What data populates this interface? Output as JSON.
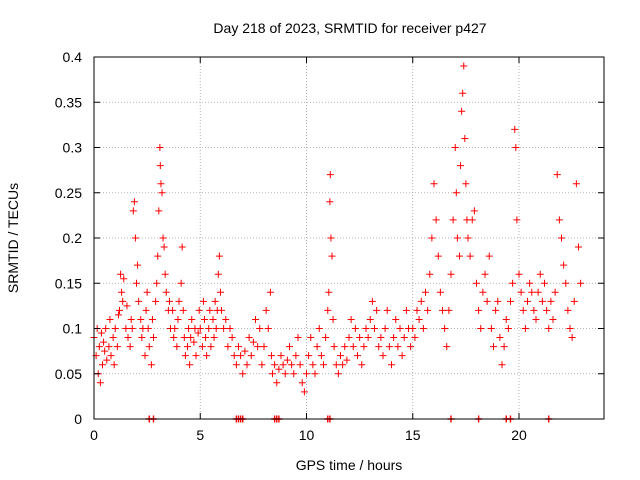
{
  "chart_data": {
    "type": "scatter",
    "title": "Day 218 of 2023, SRMTID for receiver p427",
    "xlabel": "GPS time / hours",
    "ylabel": "SRMTID / TECUs",
    "xlim": [
      0,
      24
    ],
    "ylim": [
      0,
      0.4
    ],
    "grid": true,
    "x_ticks": [
      0,
      5,
      10,
      15,
      20
    ],
    "x_tick_labels": [
      "0",
      "5",
      "10",
      "15",
      "20"
    ],
    "y_ticks": [
      0,
      0.05,
      0.1,
      0.15,
      0.2,
      0.25,
      0.3,
      0.35,
      0.4
    ],
    "y_tick_labels": [
      "0",
      "0.05",
      "0.1",
      "0.15",
      "0.2",
      "0.25",
      "0.3",
      "0.35",
      "0.4"
    ],
    "marker": "+",
    "series": [
      {
        "name": "SRMTID",
        "color": "#ff0000",
        "points": [
          [
            0.0,
            0.09
          ],
          [
            0.1,
            0.07
          ],
          [
            0.15,
            0.1
          ],
          [
            0.2,
            0.05
          ],
          [
            0.25,
            0.08
          ],
          [
            0.3,
            0.04
          ],
          [
            0.35,
            0.095
          ],
          [
            0.4,
            0.06
          ],
          [
            0.45,
            0.085
          ],
          [
            0.5,
            0.075
          ],
          [
            0.55,
            0.1
          ],
          [
            0.6,
            0.065
          ],
          [
            0.7,
            0.08
          ],
          [
            0.75,
            0.11
          ],
          [
            0.8,
            0.07
          ],
          [
            0.9,
            0.09
          ],
          [
            0.95,
            0.06
          ],
          [
            1.0,
            0.1
          ],
          [
            1.1,
            0.08
          ],
          [
            1.15,
            0.115
          ],
          [
            1.2,
            0.12
          ],
          [
            1.25,
            0.16
          ],
          [
            1.3,
            0.14
          ],
          [
            1.35,
            0.13
          ],
          [
            1.4,
            0.155
          ],
          [
            1.5,
            0.1
          ],
          [
            1.55,
            0.125
          ],
          [
            1.6,
            0.09
          ],
          [
            1.7,
            0.08
          ],
          [
            1.75,
            0.11
          ],
          [
            1.8,
            0.1
          ],
          [
            1.85,
            0.23
          ],
          [
            1.9,
            0.24
          ],
          [
            1.95,
            0.2
          ],
          [
            2.0,
            0.15
          ],
          [
            2.05,
            0.17
          ],
          [
            2.1,
            0.13
          ],
          [
            2.2,
            0.11
          ],
          [
            2.25,
            0.09
          ],
          [
            2.3,
            0.1
          ],
          [
            2.4,
            0.07
          ],
          [
            2.45,
            0.12
          ],
          [
            2.5,
            0.14
          ],
          [
            2.55,
            0.1
          ],
          [
            2.6,
            0.08
          ],
          [
            2.7,
            0.06
          ],
          [
            2.75,
            0.11
          ],
          [
            2.8,
            0.09
          ],
          [
            2.9,
            0.13
          ],
          [
            2.95,
            0.15
          ],
          [
            3.0,
            0.18
          ],
          [
            3.05,
            0.23
          ],
          [
            3.1,
            0.3
          ],
          [
            3.12,
            0.28
          ],
          [
            3.15,
            0.26
          ],
          [
            3.2,
            0.25
          ],
          [
            3.25,
            0.2
          ],
          [
            3.3,
            0.19
          ],
          [
            3.35,
            0.16
          ],
          [
            3.4,
            0.14
          ],
          [
            3.5,
            0.12
          ],
          [
            3.55,
            0.13
          ],
          [
            3.6,
            0.1
          ],
          [
            3.7,
            0.12
          ],
          [
            3.75,
            0.09
          ],
          [
            3.8,
            0.1
          ],
          [
            3.9,
            0.08
          ],
          [
            3.95,
            0.11
          ],
          [
            4.0,
            0.13
          ],
          [
            4.1,
            0.15
          ],
          [
            4.15,
            0.19
          ],
          [
            4.2,
            0.12
          ],
          [
            4.25,
            0.09
          ],
          [
            4.3,
            0.07
          ],
          [
            4.4,
            0.08
          ],
          [
            4.45,
            0.1
          ],
          [
            4.5,
            0.06
          ],
          [
            4.55,
            0.09
          ],
          [
            4.6,
            0.11
          ],
          [
            4.7,
            0.085
          ],
          [
            4.75,
            0.1
          ],
          [
            4.8,
            0.07
          ],
          [
            4.9,
            0.095
          ],
          [
            4.95,
            0.12
          ],
          [
            5.0,
            0.1
          ],
          [
            5.1,
            0.08
          ],
          [
            5.15,
            0.13
          ],
          [
            5.2,
            0.11
          ],
          [
            5.25,
            0.09
          ],
          [
            5.3,
            0.07
          ],
          [
            5.4,
            0.1
          ],
          [
            5.45,
            0.12
          ],
          [
            5.5,
            0.08
          ],
          [
            5.6,
            0.11
          ],
          [
            5.65,
            0.09
          ],
          [
            5.7,
            0.13
          ],
          [
            5.75,
            0.1
          ],
          [
            5.8,
            0.12
          ],
          [
            5.85,
            0.16
          ],
          [
            5.9,
            0.18
          ],
          [
            5.95,
            0.14
          ],
          [
            6.0,
            0.12
          ],
          [
            6.1,
            0.1
          ],
          [
            6.2,
            0.11
          ],
          [
            6.3,
            0.08
          ],
          [
            6.4,
            0.1
          ],
          [
            6.5,
            0.09
          ],
          [
            6.6,
            0.07
          ],
          [
            6.7,
            0.06
          ],
          [
            6.8,
            0.08
          ],
          [
            6.9,
            0.07
          ],
          [
            7.0,
            0.05
          ],
          [
            7.1,
            0.075
          ],
          [
            7.2,
            0.06
          ],
          [
            7.3,
            0.09
          ],
          [
            7.4,
            0.07
          ],
          [
            7.5,
            0.085
          ],
          [
            7.6,
            0.11
          ],
          [
            7.7,
            0.08
          ],
          [
            7.8,
            0.1
          ],
          [
            7.9,
            0.06
          ],
          [
            8.0,
            0.08
          ],
          [
            8.1,
            0.12
          ],
          [
            8.2,
            0.1
          ],
          [
            8.3,
            0.14
          ],
          [
            8.35,
            0.07
          ],
          [
            8.4,
            0.05
          ],
          [
            8.5,
            0.06
          ],
          [
            8.6,
            0.04
          ],
          [
            8.7,
            0.055
          ],
          [
            8.8,
            0.07
          ],
          [
            8.9,
            0.06
          ],
          [
            9.0,
            0.05
          ],
          [
            9.1,
            0.065
          ],
          [
            9.2,
            0.08
          ],
          [
            9.3,
            0.06
          ],
          [
            9.4,
            0.05
          ],
          [
            9.5,
            0.07
          ],
          [
            9.6,
            0.09
          ],
          [
            9.7,
            0.06
          ],
          [
            9.8,
            0.04
          ],
          [
            9.9,
            0.03
          ],
          [
            10.0,
            0.05
          ],
          [
            10.1,
            0.07
          ],
          [
            10.2,
            0.09
          ],
          [
            10.3,
            0.06
          ],
          [
            10.4,
            0.05
          ],
          [
            10.5,
            0.08
          ],
          [
            10.6,
            0.1
          ],
          [
            10.7,
            0.07
          ],
          [
            10.8,
            0.06
          ],
          [
            10.9,
            0.09
          ],
          [
            11.0,
            0.12
          ],
          [
            11.05,
            0.14
          ],
          [
            11.1,
            0.24
          ],
          [
            11.12,
            0.27
          ],
          [
            11.15,
            0.2
          ],
          [
            11.2,
            0.18
          ],
          [
            11.25,
            0.11
          ],
          [
            11.3,
            0.08
          ],
          [
            11.4,
            0.06
          ],
          [
            11.5,
            0.05
          ],
          [
            11.6,
            0.07
          ],
          [
            11.7,
            0.06
          ],
          [
            11.8,
            0.08
          ],
          [
            11.9,
            0.065
          ],
          [
            12.0,
            0.09
          ],
          [
            12.1,
            0.11
          ],
          [
            12.2,
            0.08
          ],
          [
            12.3,
            0.1
          ],
          [
            12.4,
            0.07
          ],
          [
            12.5,
            0.09
          ],
          [
            12.6,
            0.06
          ],
          [
            12.7,
            0.08
          ],
          [
            12.8,
            0.1
          ],
          [
            12.9,
            0.09
          ],
          [
            13.0,
            0.11
          ],
          [
            13.1,
            0.13
          ],
          [
            13.2,
            0.1
          ],
          [
            13.3,
            0.12
          ],
          [
            13.4,
            0.08
          ],
          [
            13.5,
            0.09
          ],
          [
            13.6,
            0.07
          ],
          [
            13.7,
            0.1
          ],
          [
            13.8,
            0.12
          ],
          [
            13.9,
            0.08
          ],
          [
            14.0,
            0.06
          ],
          [
            14.1,
            0.09
          ],
          [
            14.2,
            0.11
          ],
          [
            14.3,
            0.08
          ],
          [
            14.4,
            0.1
          ],
          [
            14.5,
            0.07
          ],
          [
            14.6,
            0.09
          ],
          [
            14.7,
            0.12
          ],
          [
            14.8,
            0.1
          ],
          [
            14.9,
            0.08
          ],
          [
            15.0,
            0.1
          ],
          [
            15.1,
            0.09
          ],
          [
            15.2,
            0.12
          ],
          [
            15.3,
            0.11
          ],
          [
            15.4,
            0.13
          ],
          [
            15.5,
            0.1
          ],
          [
            15.6,
            0.14
          ],
          [
            15.7,
            0.12
          ],
          [
            15.8,
            0.16
          ],
          [
            15.9,
            0.2
          ],
          [
            16.0,
            0.26
          ],
          [
            16.1,
            0.22
          ],
          [
            16.2,
            0.18
          ],
          [
            16.3,
            0.14
          ],
          [
            16.4,
            0.12
          ],
          [
            16.5,
            0.1
          ],
          [
            16.6,
            0.08
          ],
          [
            16.7,
            0.12
          ],
          [
            16.8,
            0.16
          ],
          [
            16.9,
            0.22
          ],
          [
            17.0,
            0.3
          ],
          [
            17.05,
            0.25
          ],
          [
            17.1,
            0.2
          ],
          [
            17.2,
            0.18
          ],
          [
            17.25,
            0.28
          ],
          [
            17.3,
            0.34
          ],
          [
            17.35,
            0.36
          ],
          [
            17.4,
            0.39
          ],
          [
            17.45,
            0.31
          ],
          [
            17.5,
            0.26
          ],
          [
            17.55,
            0.22
          ],
          [
            17.6,
            0.2
          ],
          [
            17.7,
            0.18
          ],
          [
            17.8,
            0.22
          ],
          [
            17.9,
            0.23
          ],
          [
            18.0,
            0.15
          ],
          [
            18.1,
            0.12
          ],
          [
            18.2,
            0.1
          ],
          [
            18.3,
            0.14
          ],
          [
            18.4,
            0.16
          ],
          [
            18.5,
            0.13
          ],
          [
            18.6,
            0.18
          ],
          [
            18.7,
            0.1
          ],
          [
            18.8,
            0.08
          ],
          [
            18.9,
            0.12
          ],
          [
            19.0,
            0.13
          ],
          [
            19.1,
            0.09
          ],
          [
            19.2,
            0.06
          ],
          [
            19.3,
            0.08
          ],
          [
            19.4,
            0.11
          ],
          [
            19.5,
            0.1
          ],
          [
            19.6,
            0.13
          ],
          [
            19.7,
            0.15
          ],
          [
            19.8,
            0.32
          ],
          [
            19.85,
            0.3
          ],
          [
            19.9,
            0.22
          ],
          [
            20.0,
            0.16
          ],
          [
            20.1,
            0.14
          ],
          [
            20.2,
            0.12
          ],
          [
            20.3,
            0.1
          ],
          [
            20.4,
            0.13
          ],
          [
            20.5,
            0.15
          ],
          [
            20.6,
            0.14
          ],
          [
            20.7,
            0.12
          ],
          [
            20.8,
            0.11
          ],
          [
            20.9,
            0.14
          ],
          [
            21.0,
            0.16
          ],
          [
            21.1,
            0.13
          ],
          [
            21.2,
            0.15
          ],
          [
            21.3,
            0.12
          ],
          [
            21.4,
            0.1
          ],
          [
            21.5,
            0.13
          ],
          [
            21.6,
            0.11
          ],
          [
            21.7,
            0.14
          ],
          [
            21.8,
            0.27
          ],
          [
            21.9,
            0.22
          ],
          [
            22.0,
            0.2
          ],
          [
            22.1,
            0.17
          ],
          [
            22.2,
            0.15
          ],
          [
            22.3,
            0.12
          ],
          [
            22.4,
            0.1
          ],
          [
            22.5,
            0.09
          ],
          [
            22.6,
            0.13
          ],
          [
            22.7,
            0.26
          ],
          [
            22.8,
            0.19
          ],
          [
            22.9,
            0.15
          ]
        ]
      }
    ],
    "baseline_markers_x": [
      2.6,
      2.8,
      6.7,
      6.8,
      6.9,
      7.0,
      8.5,
      8.6,
      8.7,
      11.0,
      11.1,
      16.8,
      18.1,
      19.4,
      19.6,
      21.4
    ]
  }
}
